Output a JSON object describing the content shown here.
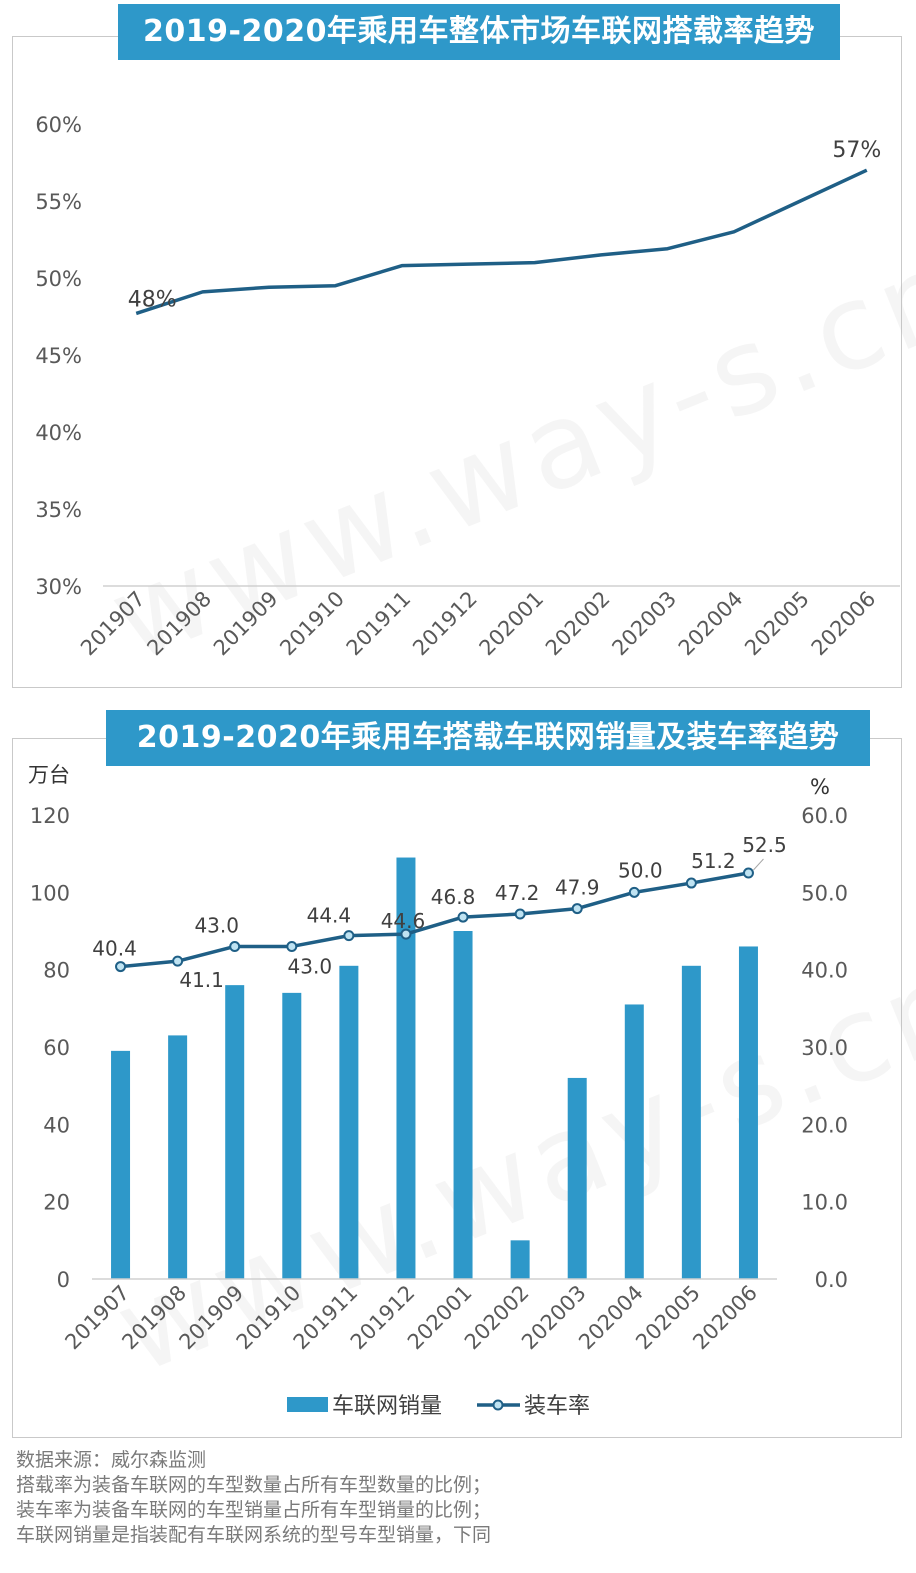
{
  "watermark": "www.way-s.cn",
  "colors": {
    "title_bg": "#2e98c9",
    "line": "#1f5f86",
    "bar": "#2e98c9",
    "marker_fill": "#bfe3f2"
  },
  "chart_data": [
    {
      "type": "line",
      "title": "2019-2020年乘用车整体市场车联网搭载率趋势",
      "categories": [
        "201907",
        "201908",
        "201909",
        "201910",
        "201911",
        "201912",
        "202001",
        "202002",
        "202003",
        "202004",
        "202005",
        "202006"
      ],
      "series": [
        {
          "values": [
            47.7,
            49.1,
            49.4,
            49.5,
            50.8,
            50.9,
            51.0,
            51.5,
            51.9,
            53.0,
            55.0,
            57.0
          ]
        }
      ],
      "data_labels": [
        {
          "index": 0,
          "text": "48%"
        },
        {
          "index": 11,
          "text": "57%"
        }
      ],
      "yticks": [
        "30%",
        "35%",
        "40%",
        "45%",
        "50%",
        "55%",
        "60%"
      ],
      "ylim": [
        30,
        60
      ],
      "grid": false
    },
    {
      "type": "bar",
      "title": "2019-2020年乘用车搭载车联网销量及装车率趋势",
      "y_unit_left": "万台",
      "y_unit_right": "%",
      "categories": [
        "201907",
        "201908",
        "201909",
        "201910",
        "201911",
        "201912",
        "202001",
        "202002",
        "202003",
        "202004",
        "202005",
        "202006"
      ],
      "series": [
        {
          "name": "车联网销量",
          "type": "bar",
          "axis": "left",
          "values": [
            59,
            63,
            76,
            74,
            81,
            109,
            90,
            10,
            52,
            71,
            81,
            86
          ]
        },
        {
          "name": "装车率",
          "type": "line",
          "axis": "right",
          "values": [
            40.4,
            41.1,
            43.0,
            43.0,
            44.4,
            44.6,
            46.8,
            47.2,
            47.9,
            50.0,
            51.2,
            52.5
          ],
          "labels": [
            "40.4",
            "41.1",
            "43.0",
            "43.0",
            "44.4",
            "44.6",
            "46.8",
            "47.2",
            "47.9",
            "50.0",
            "51.2",
            "52.5"
          ]
        }
      ],
      "yticks_left": [
        "0",
        "20",
        "40",
        "60",
        "80",
        "100",
        "120"
      ],
      "yticks_right": [
        "0.0",
        "10.0",
        "20.0",
        "30.0",
        "40.0",
        "50.0",
        "60.0"
      ],
      "ylim_left": [
        0,
        120
      ],
      "ylim_right": [
        0,
        60
      ],
      "legend": "bottom",
      "grid": false
    }
  ],
  "footnotes": [
    "数据来源：威尔森监测",
    "搭载率为装备车联网的车型数量占所有车型数量的比例；",
    "装车率为装备车联网的车型销量占所有车型销量的比例；",
    "车联网销量是指装配有车联网系统的型号车型销量，下同"
  ]
}
